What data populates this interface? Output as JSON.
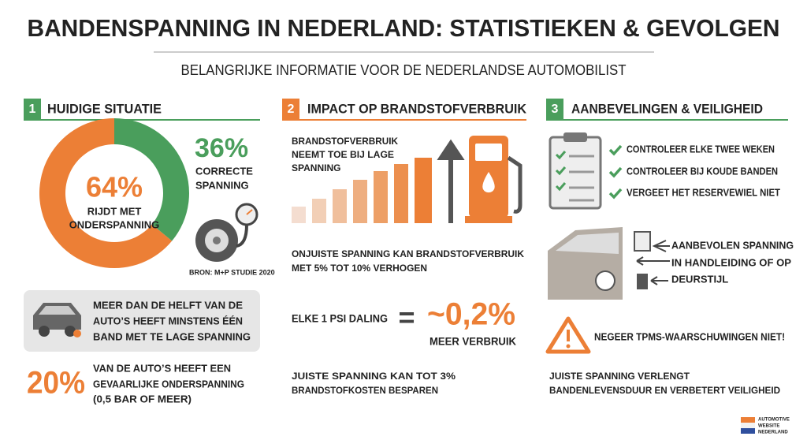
{
  "header": {
    "title": "BANDENSPANNING IN NEDERLAND: STATISTIEKEN & GEVOLGEN",
    "subtitle": "BELANGRIJKE INFORMATIE VOOR DE NEDERLANDSE AUTOMOBILIST"
  },
  "sections": [
    {
      "number": 1,
      "title": "HUIDIGE SITUATIE",
      "color": "#4a9e5c",
      "donut": {
        "values": [
          64,
          36
        ],
        "value_labels": [
          "64%",
          "36%"
        ],
        "colors": [
          "#ec7f36",
          "#4a9e5c"
        ],
        "label_lines": [
          [
            "RIJDT MET",
            "ONDERSPANNING"
          ],
          [
            "CORRECTE",
            "SPANNING"
          ]
        ]
      },
      "source": "BRON: M+P STUDIE 2020",
      "callout_lines": [
        "MEER DAN DE HELFT VAN DE",
        "AUTO’S HEEFT MINSTENS ÉÉN",
        "BAND MET TE LAGE SPANNING"
      ],
      "stat": "20%",
      "stat_lines": [
        "VAN DE AUTO’S HEEFT EEN",
        "GEVAARLIJKE ONDERSPANNING",
        "(0,5 BAR OF MEER)"
      ]
    },
    {
      "number": 2,
      "title": "IMPACT OP BRANDSTOFVERBRUIK",
      "color": "#ec7f36",
      "intro_lines": [
        "BRANDSTOFVERBRUIK",
        "NEEMT TOE BIJ LAGE",
        "SPANNING"
      ],
      "statement_lines": [
        "ONJUISTE SPANNING KAN BRANDSTOFVERBRUIK",
        "MET 5% TOT 10% VERHOGEN"
      ],
      "equation": {
        "left": "ELKE 1 PSI DALING",
        "operator": "=",
        "right": "~0,2%",
        "right_caption": "MEER VERBRUIK"
      },
      "conclusion_lines": [
        "JUISTE SPANNING KAN TOT 3%",
        "BRANDSTOFKOSTEN BESPAREN"
      ]
    },
    {
      "number": 3,
      "title": "AANBEVELINGEN & VEILIGHEID",
      "color": "#4a9e5c",
      "checklist": [
        "CONTROLEER ELKE TWEE WEKEN",
        "CONTROLEER BIJ KOUDE BANDEN",
        "VERGEET HET RESERVEWIEL NIET"
      ],
      "advice_lines": [
        "AANBEVOLEN SPANNING",
        "IN HANDLEIDING OF OP",
        "DEURSTIJL"
      ],
      "warning": "NEGEER TPMS-WAARSCHUWINGEN NIET!",
      "conclusion_lines": [
        "JUISTE SPANNING VERLENGT",
        "BANDENLEVENSDUUR EN VERBETERT VEILIGHEID"
      ]
    }
  ],
  "logo_lines": [
    "AUTOMOTIVE",
    "WEBSITE",
    "NEDERLAND"
  ]
}
